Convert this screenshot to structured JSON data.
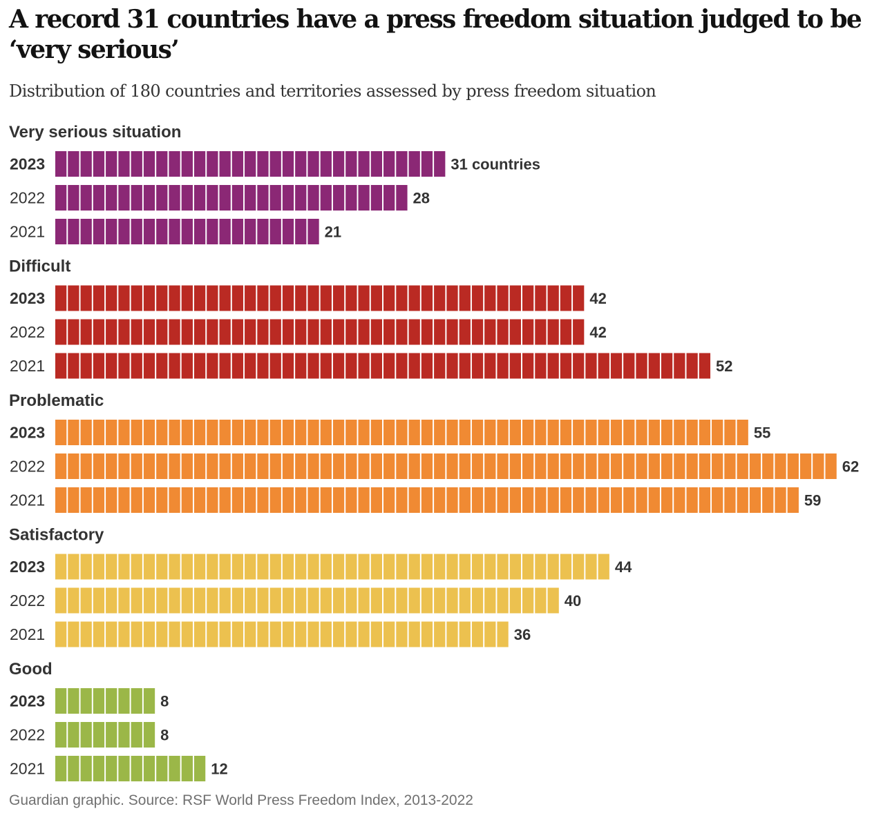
{
  "title": "A record 31 countries have a press freedom situation judged to be ‘very serious’",
  "subtitle": "Distribution of 180 countries and territories assessed by press freedom situation",
  "footer": "Guardian graphic. Source: RSF World Press Freedom Index, 2013-2022",
  "chart_data": {
    "type": "bar",
    "orientation": "horizontal",
    "style": "unit blocks (one block per country)",
    "title": "A record 31 countries have a press freedom situation judged to be ‘very serious’",
    "subtitle": "Distribution of 180 countries and territories assessed by press freedom situation",
    "unit_suffix_first": " countries",
    "groups": [
      {
        "name": "Very serious situation",
        "color": "#8b2875",
        "rows": [
          {
            "year": "2023",
            "value": 31
          },
          {
            "year": "2022",
            "value": 28
          },
          {
            "year": "2021",
            "value": 21
          }
        ]
      },
      {
        "name": "Difficult",
        "color": "#ba2a23",
        "rows": [
          {
            "year": "2023",
            "value": 42
          },
          {
            "year": "2022",
            "value": 42
          },
          {
            "year": "2021",
            "value": 52
          }
        ]
      },
      {
        "name": "Problematic",
        "color": "#f08a33",
        "rows": [
          {
            "year": "2023",
            "value": 55
          },
          {
            "year": "2022",
            "value": 62
          },
          {
            "year": "2021",
            "value": 59
          }
        ]
      },
      {
        "name": "Satisfactory",
        "color": "#ecc14f",
        "rows": [
          {
            "year": "2023",
            "value": 44
          },
          {
            "year": "2022",
            "value": 40
          },
          {
            "year": "2021",
            "value": 36
          }
        ]
      },
      {
        "name": "Good",
        "color": "#9bb748",
        "rows": [
          {
            "year": "2023",
            "value": 8
          },
          {
            "year": "2022",
            "value": 8
          },
          {
            "year": "2021",
            "value": 12
          }
        ]
      }
    ],
    "highlight_year": "2023",
    "xlabel": "",
    "ylabel": "",
    "grid": false,
    "legend": "none",
    "source": "RSF World Press Freedom Index, 2013-2022"
  }
}
